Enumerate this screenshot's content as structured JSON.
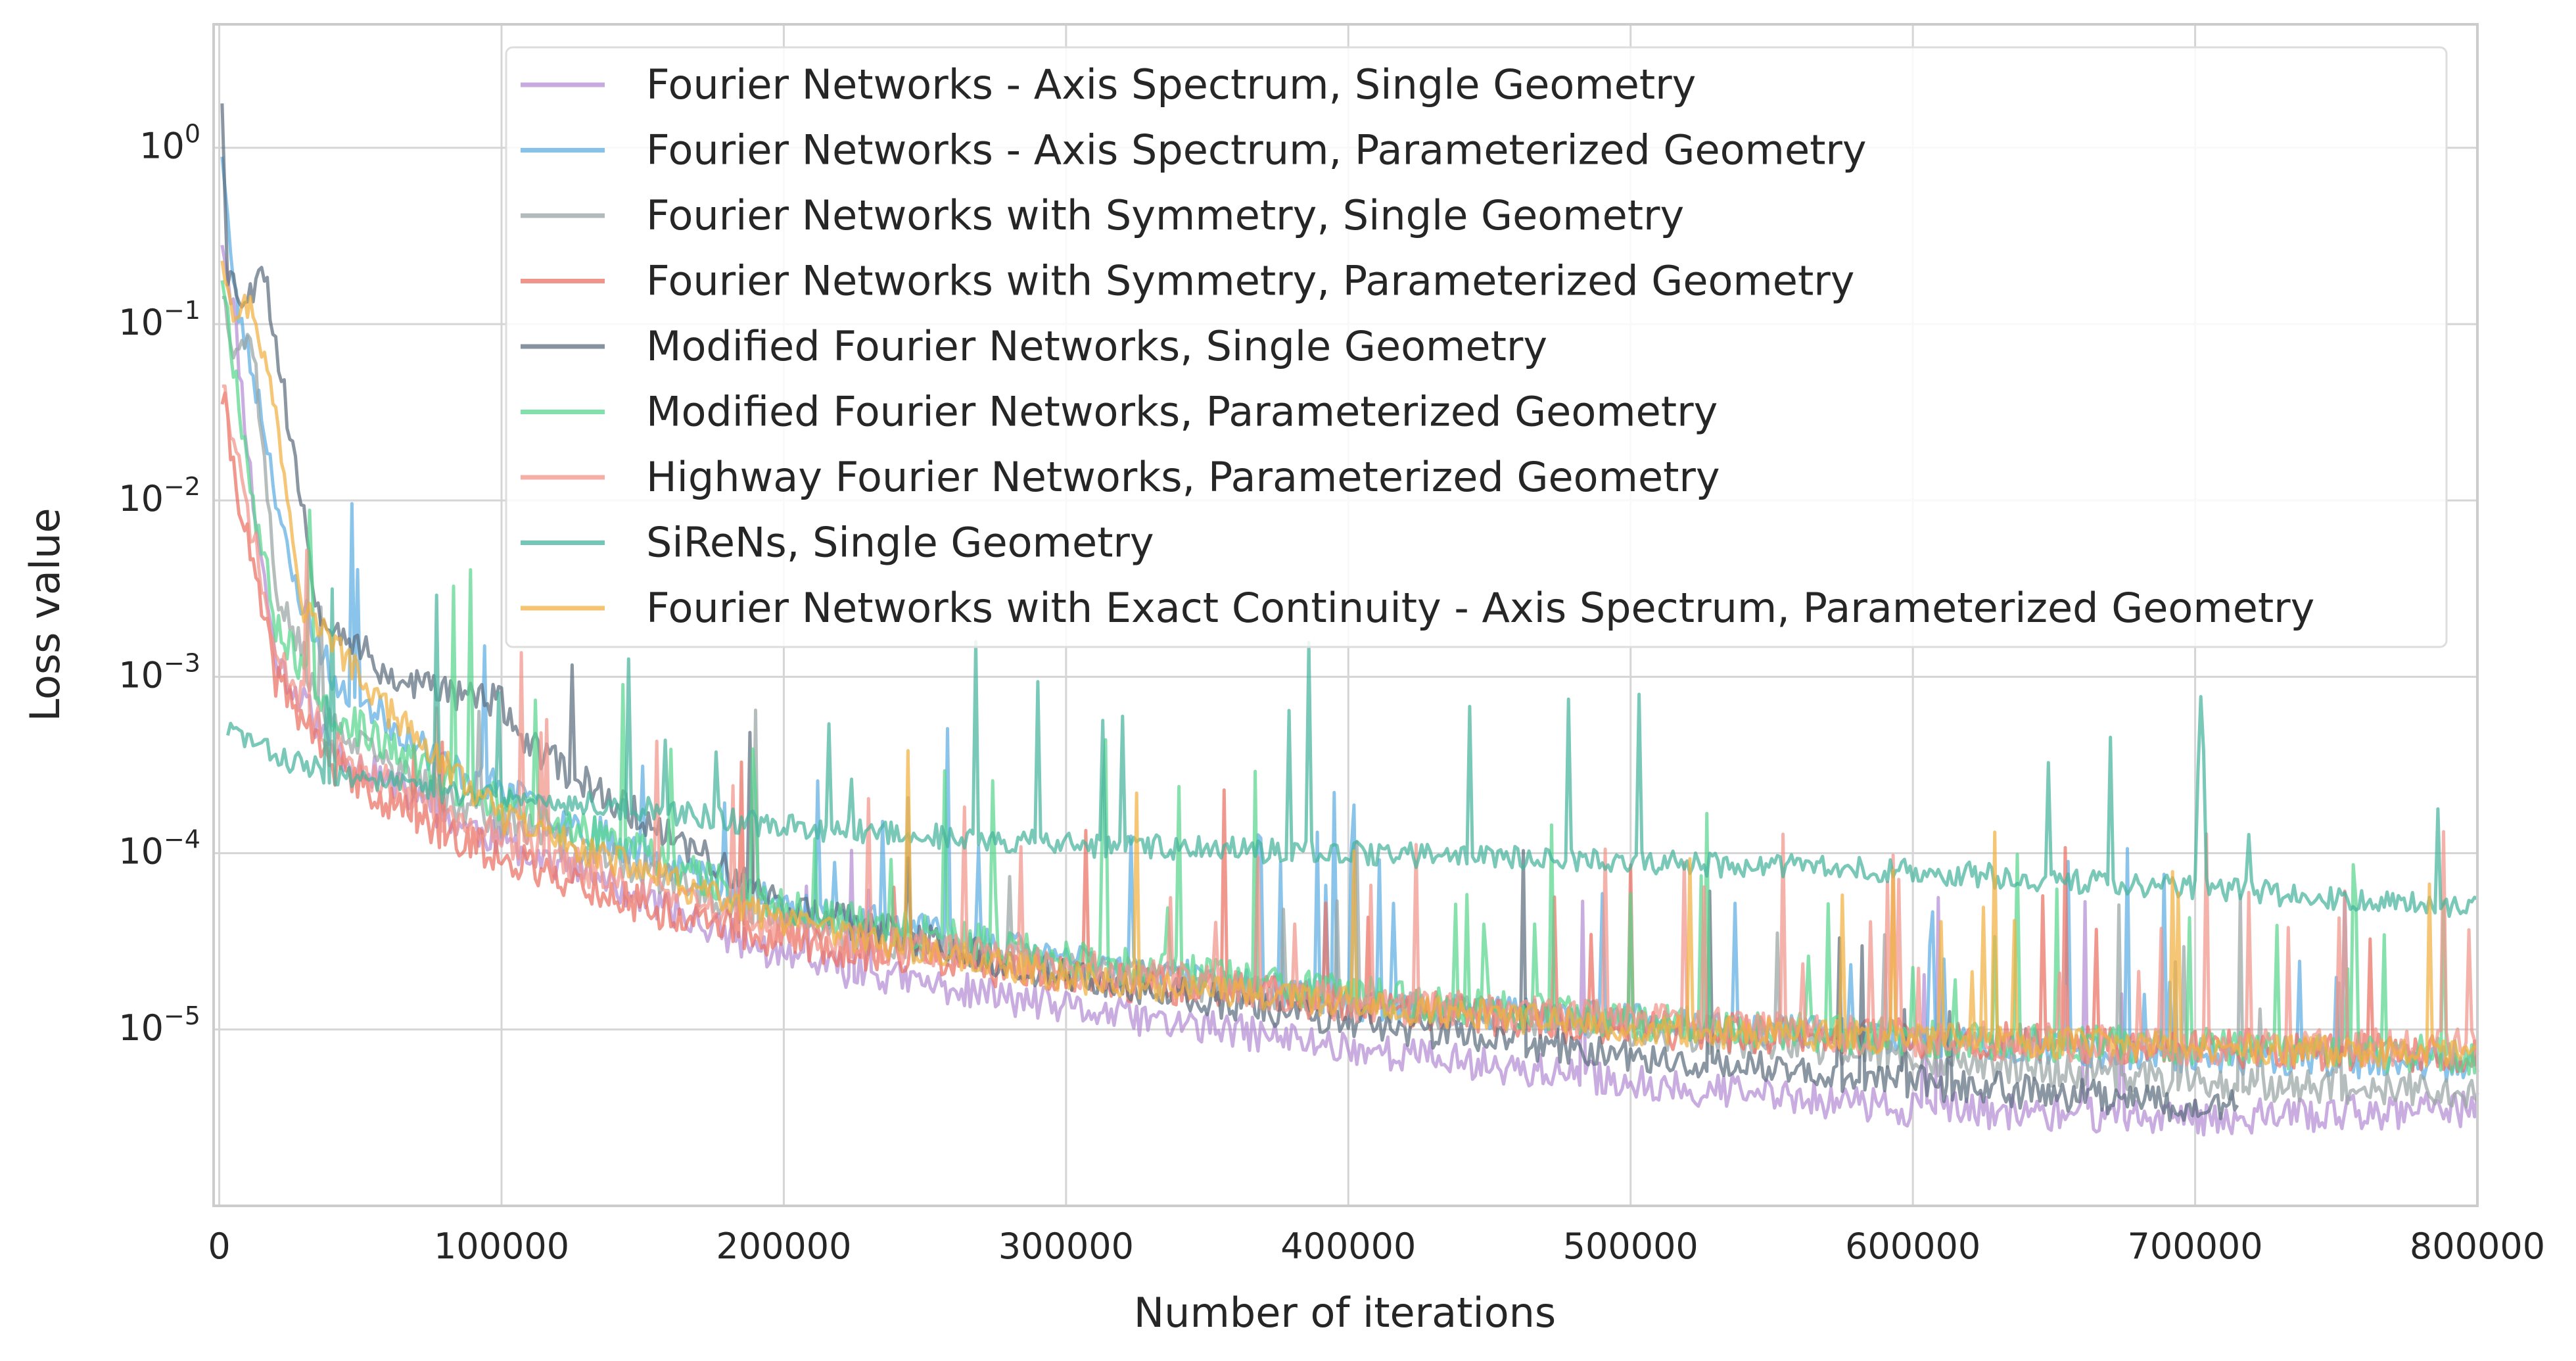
{
  "chart_data": {
    "type": "line",
    "title": "",
    "xlabel": "Number of iterations",
    "ylabel": "Loss value",
    "xlim": [
      -2000,
      800000
    ],
    "ylim_log10": [
      -6.0,
      0.7
    ],
    "y_scale": "log",
    "grid": true,
    "legend_position": "top-right",
    "x_ticks": [
      {
        "value": 0,
        "label": "0"
      },
      {
        "value": 100000,
        "label": "100000"
      },
      {
        "value": 200000,
        "label": "200000"
      },
      {
        "value": 300000,
        "label": "300000"
      },
      {
        "value": 400000,
        "label": "400000"
      },
      {
        "value": 500000,
        "label": "500000"
      },
      {
        "value": 600000,
        "label": "600000"
      },
      {
        "value": 700000,
        "label": "700000"
      },
      {
        "value": 800000,
        "label": "800000"
      }
    ],
    "y_ticks": [
      {
        "exp": 0,
        "base": "10",
        "sup": "0"
      },
      {
        "exp": -1,
        "base": "10",
        "sup": "−1"
      },
      {
        "exp": -2,
        "base": "10",
        "sup": "−2"
      },
      {
        "exp": -3,
        "base": "10",
        "sup": "−3"
      },
      {
        "exp": -4,
        "base": "10",
        "sup": "−4"
      },
      {
        "exp": -5,
        "base": "10",
        "sup": "−5"
      }
    ],
    "series": [
      {
        "name": "Fourier Networks - Axis Spectrum, Single Geometry",
        "color": "#b48ed4",
        "noise": 0.1,
        "spike_prob": 0.015,
        "seed": 11,
        "keypoints": [
          [
            1000,
            -0.5
          ],
          [
            5000,
            -0.9
          ],
          [
            12000,
            -2.0
          ],
          [
            20000,
            -2.9
          ],
          [
            40000,
            -3.4
          ],
          [
            80000,
            -3.8
          ],
          [
            150000,
            -4.25
          ],
          [
            200000,
            -4.6
          ],
          [
            300000,
            -4.88
          ],
          [
            400000,
            -5.1
          ],
          [
            500000,
            -5.3
          ],
          [
            600000,
            -5.45
          ],
          [
            700000,
            -5.5
          ],
          [
            800000,
            -5.45
          ]
        ]
      },
      {
        "name": "Fourier Networks - Axis Spectrum, Parameterized Geometry",
        "color": "#5dade2",
        "noise": 0.1,
        "spike_prob": 0.04,
        "seed": 23,
        "keypoints": [
          [
            1000,
            0.0
          ],
          [
            5000,
            -0.8
          ],
          [
            15000,
            -1.5
          ],
          [
            25000,
            -2.4
          ],
          [
            40000,
            -3.0
          ],
          [
            80000,
            -3.5
          ],
          [
            150000,
            -4.0
          ],
          [
            200000,
            -4.3
          ],
          [
            300000,
            -4.6
          ],
          [
            400000,
            -4.85
          ],
          [
            500000,
            -4.95
          ],
          [
            600000,
            -5.05
          ],
          [
            700000,
            -5.15
          ],
          [
            800000,
            -5.2
          ]
        ]
      },
      {
        "name": "Fourier Networks with Symmetry, Single Geometry",
        "color": "#99a3a4",
        "noise": 0.1,
        "spike_prob": 0.02,
        "seed": 37,
        "keypoints": [
          [
            1000,
            -0.8
          ],
          [
            5000,
            -1.1
          ],
          [
            12000,
            -1.1
          ],
          [
            20000,
            -2.5
          ],
          [
            40000,
            -3.3
          ],
          [
            80000,
            -3.7
          ],
          [
            150000,
            -4.1
          ],
          [
            200000,
            -4.4
          ],
          [
            300000,
            -4.65
          ],
          [
            400000,
            -4.85
          ],
          [
            500000,
            -5.0
          ],
          [
            600000,
            -5.15
          ],
          [
            700000,
            -5.3
          ],
          [
            800000,
            -5.35
          ]
        ]
      },
      {
        "name": "Fourier Networks with Symmetry, Parameterized Geometry",
        "color": "#ec7063",
        "noise": 0.11,
        "spike_prob": 0.02,
        "seed": 41,
        "keypoints": [
          [
            1000,
            -1.4
          ],
          [
            5000,
            -1.8
          ],
          [
            12000,
            -2.4
          ],
          [
            20000,
            -3.0
          ],
          [
            40000,
            -3.5
          ],
          [
            80000,
            -3.9
          ],
          [
            150000,
            -4.3
          ],
          [
            200000,
            -4.5
          ],
          [
            300000,
            -4.7
          ],
          [
            400000,
            -4.85
          ],
          [
            500000,
            -5.0
          ],
          [
            600000,
            -5.05
          ],
          [
            700000,
            -5.1
          ],
          [
            800000,
            -5.15
          ]
        ]
      },
      {
        "name": "Modified Fourier Networks, Single Geometry",
        "color": "#5d6d7e",
        "noise": 0.1,
        "spike_prob": 0.015,
        "seed": 53,
        "keypoints": [
          [
            1000,
            0.3
          ],
          [
            3000,
            -0.7
          ],
          [
            10000,
            -0.9
          ],
          [
            15000,
            -0.6
          ],
          [
            25000,
            -1.6
          ],
          [
            35000,
            -2.6
          ],
          [
            60000,
            -3.0
          ],
          [
            100000,
            -3.15
          ],
          [
            110000,
            -3.4
          ],
          [
            150000,
            -3.8
          ],
          [
            200000,
            -4.3
          ],
          [
            300000,
            -4.7
          ],
          [
            400000,
            -4.95
          ],
          [
            500000,
            -5.15
          ],
          [
            600000,
            -5.3
          ],
          [
            715000,
            -5.45
          ]
        ]
      },
      {
        "name": "Modified Fourier Networks, Parameterized Geometry",
        "color": "#58d68d",
        "noise": 0.11,
        "spike_prob": 0.05,
        "seed": 67,
        "keypoints": [
          [
            1000,
            -0.7
          ],
          [
            5000,
            -1.2
          ],
          [
            12000,
            -2.0
          ],
          [
            20000,
            -2.7
          ],
          [
            40000,
            -3.2
          ],
          [
            80000,
            -3.6
          ],
          [
            150000,
            -4.0
          ],
          [
            200000,
            -4.3
          ],
          [
            300000,
            -4.6
          ],
          [
            400000,
            -4.8
          ],
          [
            500000,
            -4.95
          ],
          [
            600000,
            -5.05
          ],
          [
            700000,
            -5.1
          ],
          [
            800000,
            -5.15
          ]
        ]
      },
      {
        "name": "Highway Fourier Networks, Parameterized Geometry",
        "color": "#f1948a",
        "noise": 0.11,
        "spike_prob": 0.04,
        "seed": 71,
        "keypoints": [
          [
            1000,
            -1.3
          ],
          [
            5000,
            -1.7
          ],
          [
            12000,
            -2.2
          ],
          [
            20000,
            -2.9
          ],
          [
            40000,
            -3.4
          ],
          [
            80000,
            -3.8
          ],
          [
            150000,
            -4.2
          ],
          [
            200000,
            -4.45
          ],
          [
            300000,
            -4.65
          ],
          [
            400000,
            -4.85
          ],
          [
            500000,
            -4.95
          ],
          [
            600000,
            -5.05
          ],
          [
            700000,
            -5.1
          ],
          [
            800000,
            -5.1
          ]
        ]
      },
      {
        "name": "SiReNs, Single Geometry",
        "color": "#45b39d",
        "noise": 0.07,
        "spike_prob": 0.03,
        "seed": 83,
        "keypoints": [
          [
            3000,
            -3.3
          ],
          [
            10000,
            -3.35
          ],
          [
            20000,
            -3.45
          ],
          [
            40000,
            -3.55
          ],
          [
            80000,
            -3.65
          ],
          [
            150000,
            -3.75
          ],
          [
            200000,
            -3.85
          ],
          [
            300000,
            -3.95
          ],
          [
            400000,
            -4.0
          ],
          [
            500000,
            -4.05
          ],
          [
            600000,
            -4.1
          ],
          [
            700000,
            -4.2
          ],
          [
            800000,
            -4.3
          ]
        ]
      },
      {
        "name": "Fourier Networks with Exact Continuity - Axis Spectrum, Parameterized Geometry",
        "color": "#f0b041",
        "noise": 0.09,
        "spike_prob": 0.03,
        "seed": 97,
        "keypoints": [
          [
            1000,
            -0.6
          ],
          [
            5000,
            -0.9
          ],
          [
            12000,
            -0.9
          ],
          [
            20000,
            -1.5
          ],
          [
            30000,
            -2.6
          ],
          [
            60000,
            -3.2
          ],
          [
            100000,
            -3.8
          ],
          [
            150000,
            -4.1
          ],
          [
            200000,
            -4.4
          ],
          [
            300000,
            -4.7
          ],
          [
            400000,
            -4.85
          ],
          [
            500000,
            -5.0
          ],
          [
            600000,
            -5.05
          ],
          [
            700000,
            -5.1
          ],
          [
            800000,
            -5.15
          ]
        ]
      }
    ]
  }
}
